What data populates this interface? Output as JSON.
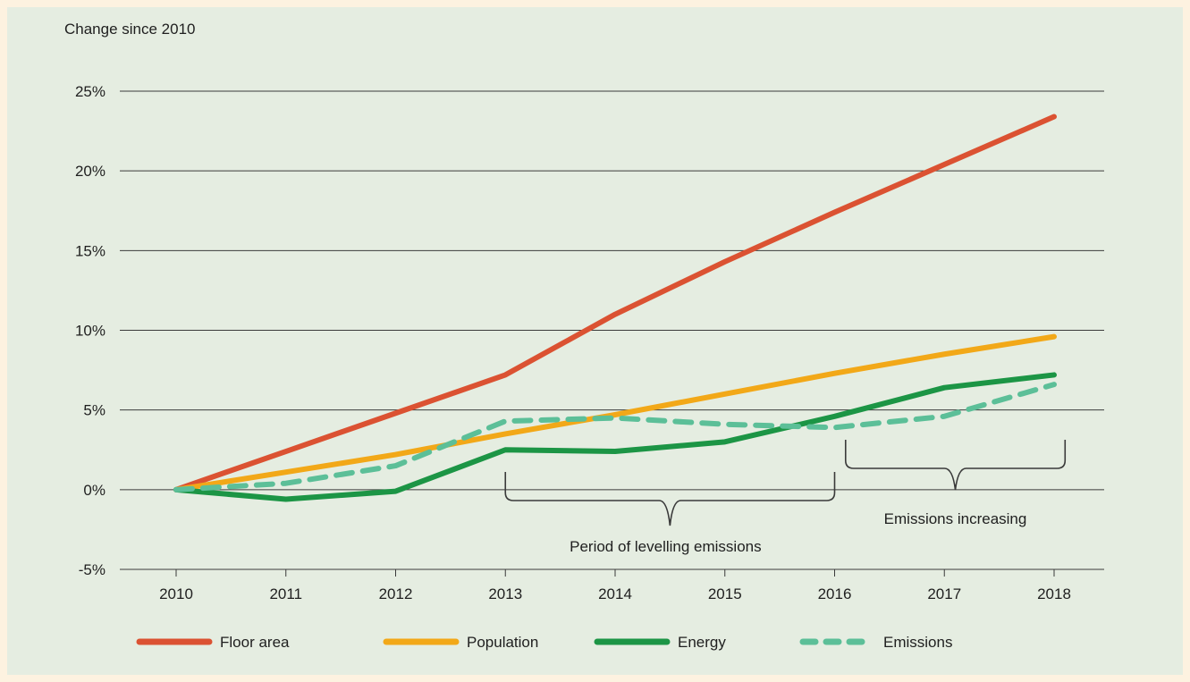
{
  "chart_data": {
    "type": "line",
    "title": "",
    "ylabel": "Change since 2010",
    "xlabel": "",
    "x": [
      2010,
      2011,
      2012,
      2013,
      2014,
      2015,
      2016,
      2017,
      2018
    ],
    "ylim": [
      -5,
      25
    ],
    "yticks": [
      -5,
      0,
      5,
      10,
      15,
      20,
      25
    ],
    "ytick_labels": [
      "-5%",
      "0%",
      "5%",
      "10%",
      "15%",
      "20%",
      "25%"
    ],
    "grid": "horizontal",
    "legend_position": "bottom",
    "series": [
      {
        "name": "Floor area",
        "color": "#db5232",
        "style": "solid",
        "values": [
          0,
          2.4,
          4.8,
          7.2,
          11.0,
          14.3,
          17.4,
          20.4,
          23.4
        ]
      },
      {
        "name": "Population",
        "color": "#f2a818",
        "style": "solid",
        "values": [
          0,
          1.1,
          2.2,
          3.5,
          4.7,
          6.0,
          7.3,
          8.5,
          9.6
        ]
      },
      {
        "name": "Energy",
        "color": "#1c9545",
        "style": "solid",
        "values": [
          0,
          -0.6,
          -0.1,
          2.5,
          2.4,
          3.0,
          4.6,
          6.4,
          7.2
        ]
      },
      {
        "name": "Emissions",
        "color": "#5cbf98",
        "style": "dashed",
        "values": [
          0,
          0.4,
          1.5,
          4.3,
          4.5,
          4.1,
          3.9,
          4.6,
          6.6
        ]
      }
    ],
    "annotations": [
      {
        "text": "Period of levelling emissions",
        "x_start": 2013,
        "x_end": 2016
      },
      {
        "text": "Emissions increasing",
        "x_start": 2016.1,
        "x_end": 2018.1
      }
    ]
  }
}
